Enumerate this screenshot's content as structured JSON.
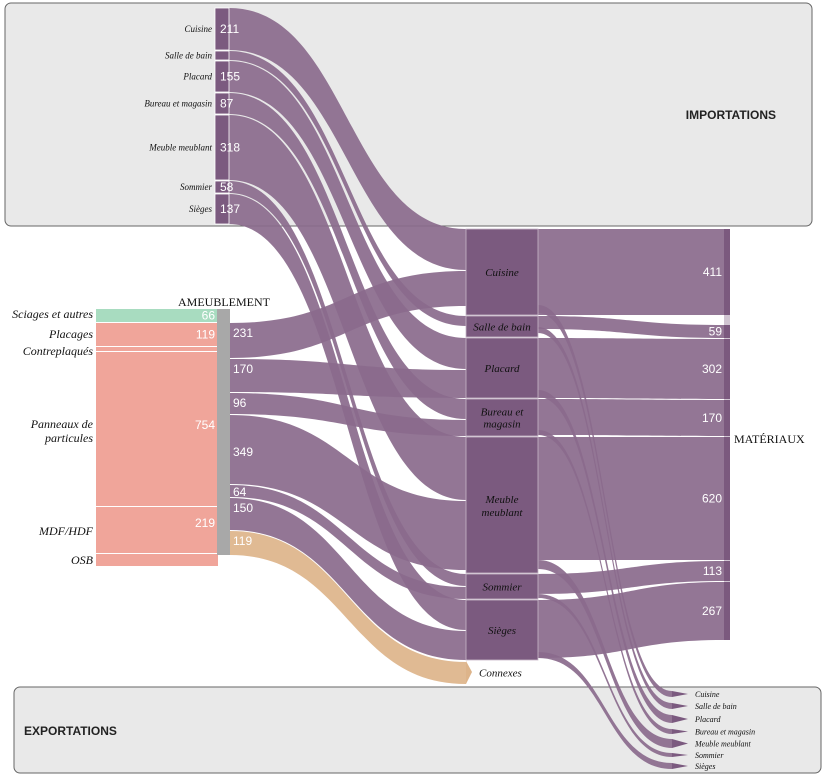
{
  "chart_data": {
    "type": "sankey",
    "colors": {
      "purple": "#8a6a8c",
      "purple_dark": "#7b5a7f",
      "green": "#a8dcc0",
      "salmon": "#f0a59a",
      "tan": "#ddb48a",
      "gray": "#a8a8a8",
      "box_fill": "#e9e9e9",
      "box_stroke": "#555555"
    },
    "regions": {
      "importations": "IMPORTATIONS",
      "exportations": "EXPORTATIONS"
    },
    "import_nodes": [
      {
        "label": "Cuisine",
        "value": "211"
      },
      {
        "label": "Salle de bain",
        "value": ""
      },
      {
        "label": "Placard",
        "value": "155"
      },
      {
        "label": "Bureau et magasin",
        "value": "87"
      },
      {
        "label": "Meuble meublant",
        "value": "318"
      },
      {
        "label": "Sommier",
        "value": "58"
      },
      {
        "label": "Sièges",
        "value": "137"
      }
    ],
    "source_nodes": [
      {
        "label": "Sciages et autres",
        "value": "66"
      },
      {
        "label": "Placages",
        "value": "119"
      },
      {
        "label": "Contreplaqués",
        "value": ""
      },
      {
        "label": "Panneaux de particules",
        "value": "754"
      },
      {
        "label": "MDF/HDF",
        "value": "219"
      },
      {
        "label": "OSB",
        "value": ""
      }
    ],
    "hub": {
      "label": "AMEUBLEMENT"
    },
    "hub_outputs": [
      {
        "value": "231"
      },
      {
        "value": "170"
      },
      {
        "value": "96"
      },
      {
        "value": "349"
      },
      {
        "value": "64"
      },
      {
        "value": "150"
      },
      {
        "value": "119"
      }
    ],
    "middle_nodes": [
      {
        "label": "Cuisine"
      },
      {
        "label": "Salle de bain"
      },
      {
        "label": "Placard"
      },
      {
        "label": "Bureau et magasin"
      },
      {
        "label": "Meuble meublant"
      },
      {
        "label": "Sommier"
      },
      {
        "label": "Sièges"
      },
      {
        "label": "Connexes"
      }
    ],
    "materials": {
      "label": "MATÉRIAUX",
      "values": [
        "411",
        "59",
        "302",
        "170",
        "620",
        "113",
        "267"
      ]
    },
    "export_nodes": [
      {
        "label": "Cuisine"
      },
      {
        "label": "Salle de bain"
      },
      {
        "label": "Placard"
      },
      {
        "label": "Bureau et magasin"
      },
      {
        "label": "Meuble meublant"
      },
      {
        "label": "Sommier"
      },
      {
        "label": "Sièges"
      }
    ]
  }
}
